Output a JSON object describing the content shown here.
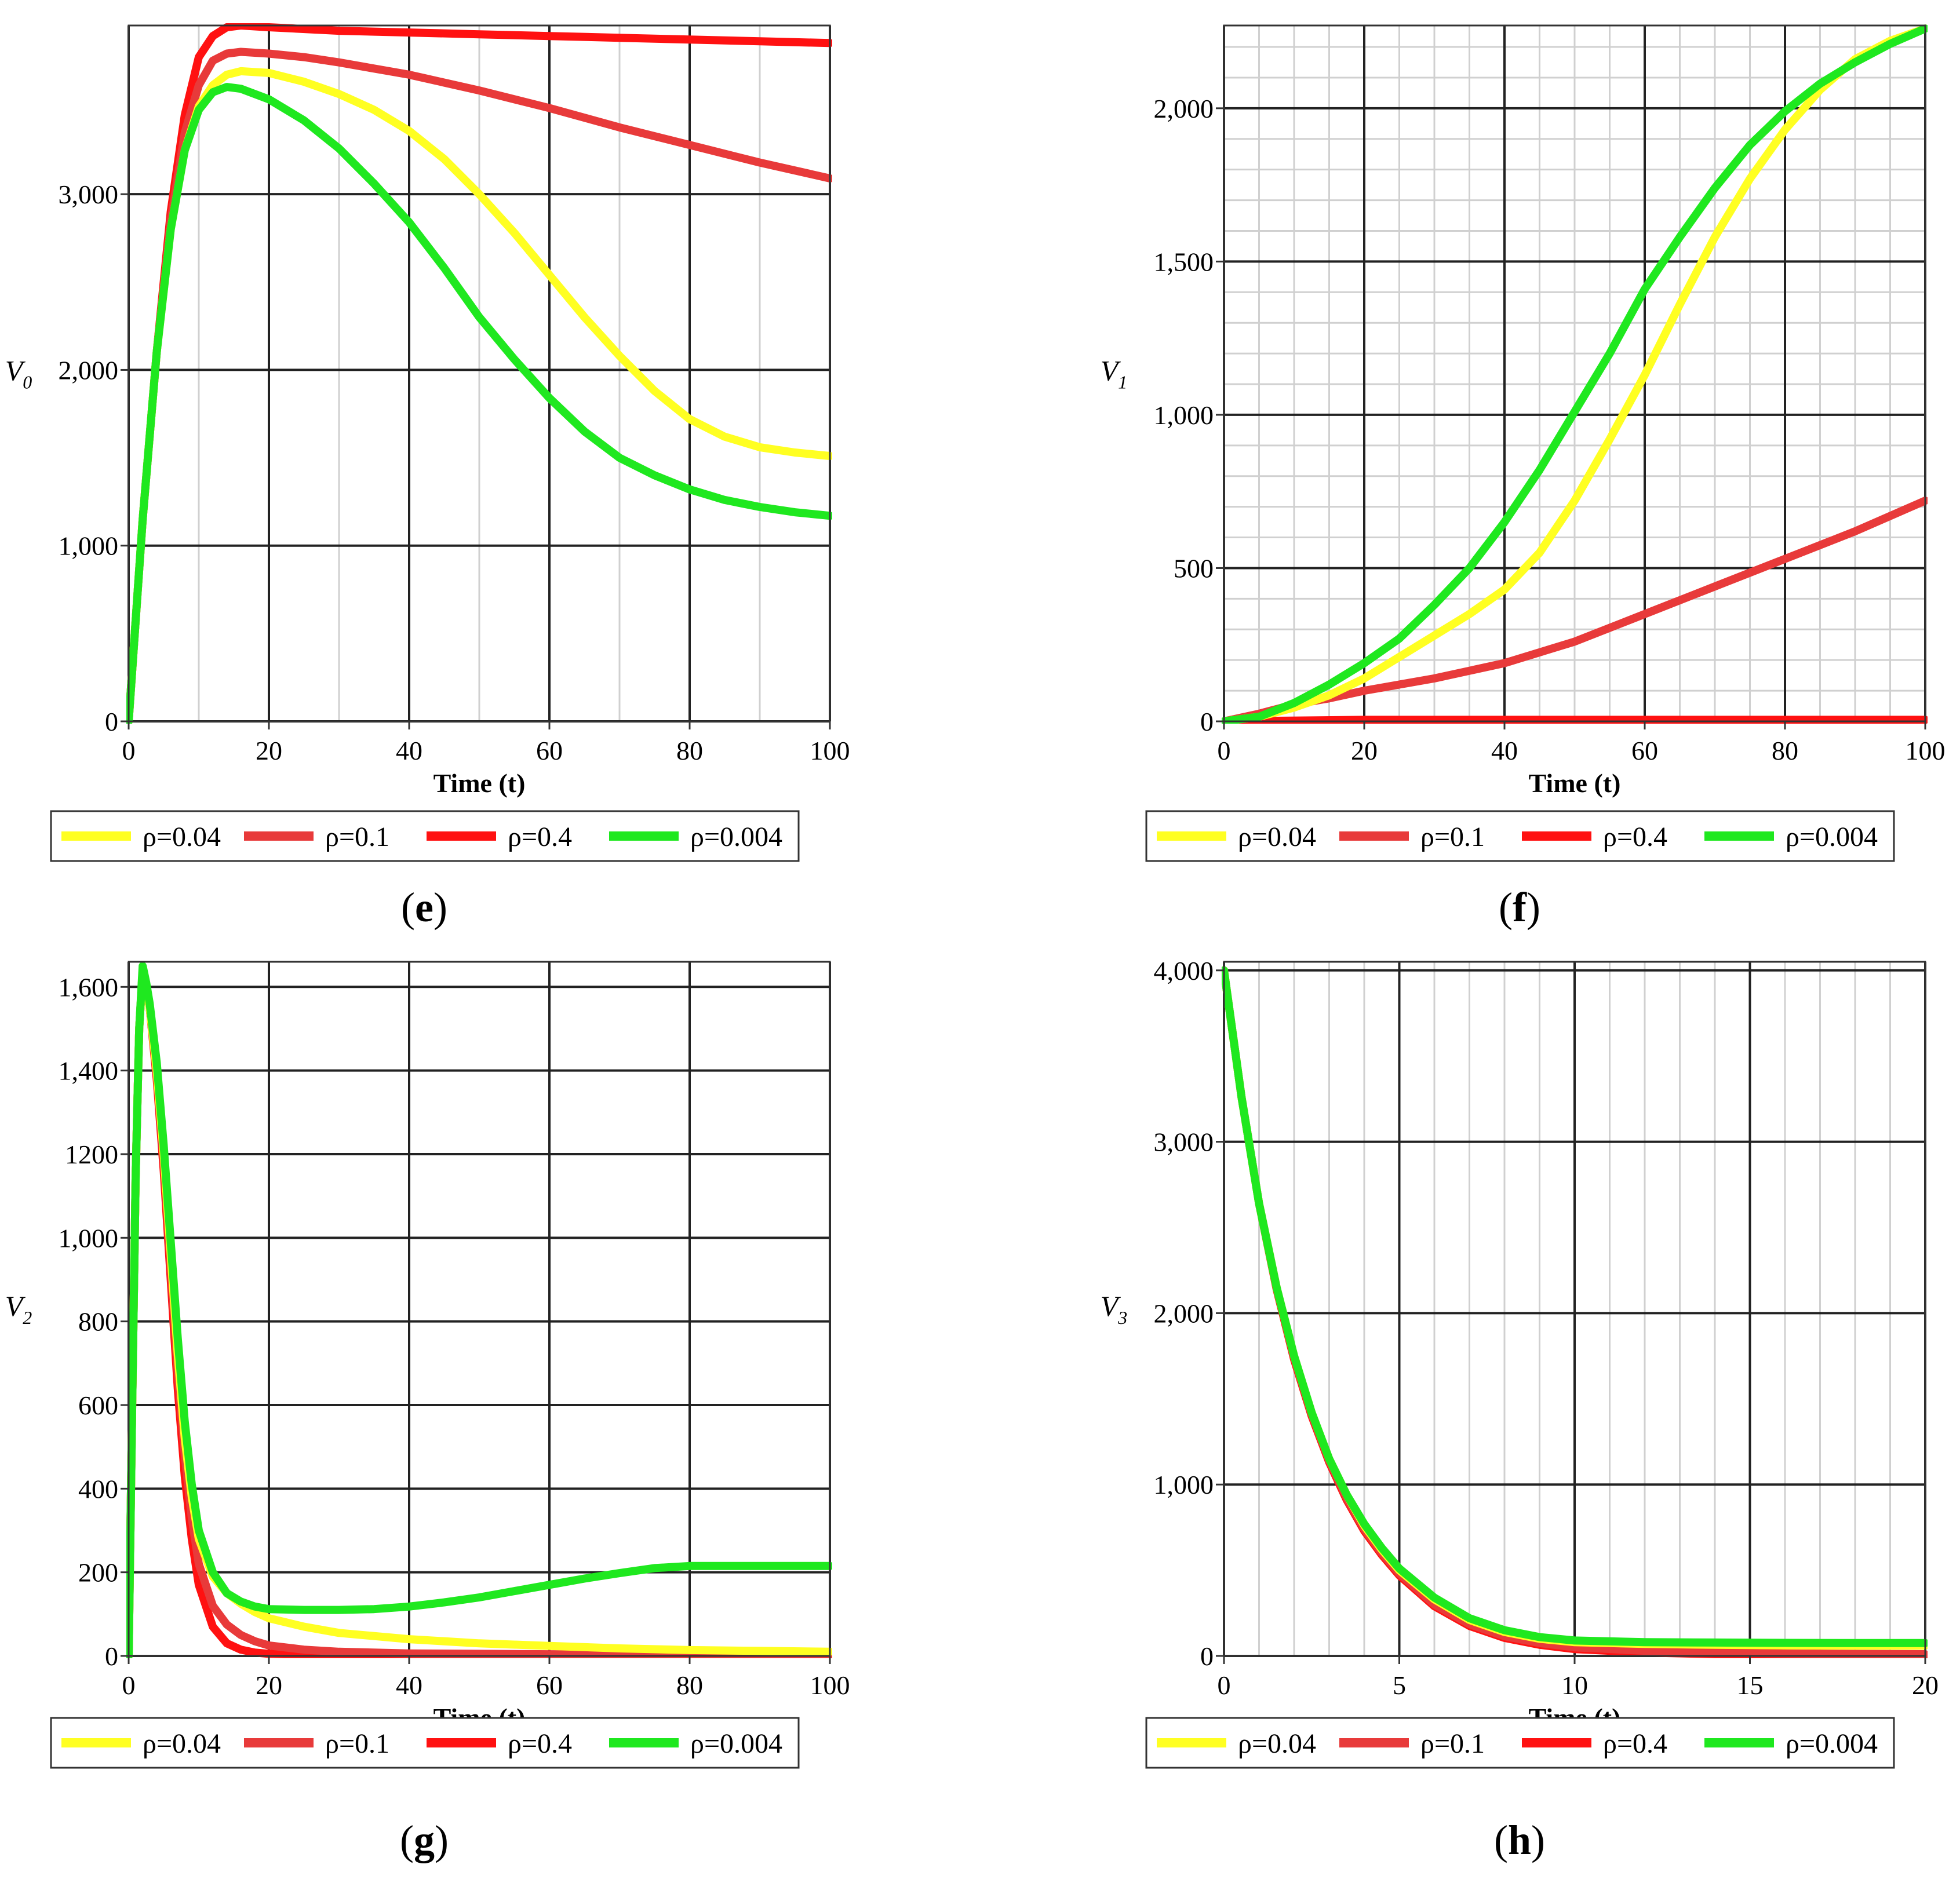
{
  "legend_series": [
    {
      "name": "ρ=0.04",
      "color": "#FFFF22"
    },
    {
      "name": "ρ=0.1",
      "color": "#E83A3A"
    },
    {
      "name": "ρ=0.4",
      "color": "#FF1111"
    },
    {
      "name": "ρ=0.004",
      "color": "#1FE81F"
    }
  ],
  "panels": {
    "e": {
      "open": "(",
      "letter": "e",
      "close": ")"
    },
    "f": {
      "open": "(",
      "letter": "f",
      "close": ")"
    },
    "g": {
      "open": "(",
      "letter": "g",
      "close": ")"
    },
    "h": {
      "open": "(",
      "letter": "h",
      "close": ")"
    }
  },
  "chart_data": [
    {
      "id": "e",
      "type": "line",
      "title": "",
      "xlabel": "Time (t)",
      "ylabel": "V",
      "ylabel_sub": "0",
      "xlim": [
        0,
        100
      ],
      "ylim": [
        0,
        3960
      ],
      "xticks": [
        0,
        20,
        40,
        60,
        80,
        100
      ],
      "xtick_labels": [
        "0",
        "20",
        "40",
        "60",
        "80",
        "100"
      ],
      "yticks": [
        0,
        1000,
        2000,
        3000
      ],
      "ytick_labels": [
        "0",
        "1,000",
        "2,000",
        "3,000"
      ],
      "major_vgrid": [
        0,
        20,
        40,
        60,
        80,
        100
      ],
      "minor_vgrid": [
        10,
        30,
        50,
        70,
        90
      ],
      "major_hgrid": [
        0,
        1000,
        2000,
        3000
      ],
      "minor_hgrid": [],
      "series": [
        {
          "name": "ρ=0.04",
          "x": [
            0,
            2,
            4,
            6,
            8,
            10,
            12,
            14,
            16,
            20,
            25,
            30,
            35,
            40,
            45,
            50,
            55,
            60,
            65,
            70,
            75,
            80,
            85,
            90,
            95,
            100
          ],
          "y": [
            0,
            1150,
            2100,
            2800,
            3250,
            3500,
            3620,
            3680,
            3700,
            3690,
            3640,
            3570,
            3480,
            3360,
            3200,
            3000,
            2780,
            2540,
            2300,
            2080,
            1880,
            1720,
            1620,
            1560,
            1530,
            1510
          ]
        },
        {
          "name": "ρ=0.1",
          "x": [
            0,
            2,
            4,
            6,
            8,
            10,
            12,
            14,
            16,
            20,
            25,
            30,
            40,
            50,
            60,
            70,
            80,
            90,
            100
          ],
          "y": [
            0,
            1150,
            2100,
            2850,
            3350,
            3620,
            3760,
            3800,
            3810,
            3800,
            3780,
            3750,
            3680,
            3590,
            3490,
            3380,
            3280,
            3180,
            3090
          ]
        },
        {
          "name": "ρ=0.4",
          "x": [
            0,
            2,
            4,
            6,
            8,
            10,
            12,
            14,
            16,
            20,
            30,
            40,
            50,
            60,
            70,
            80,
            90,
            100
          ],
          "y": [
            0,
            1150,
            2100,
            2900,
            3450,
            3780,
            3900,
            3950,
            3960,
            3950,
            3930,
            3920,
            3910,
            3900,
            3890,
            3880,
            3870,
            3860
          ]
        },
        {
          "name": "ρ=0.004",
          "x": [
            0,
            2,
            4,
            6,
            8,
            10,
            12,
            14,
            16,
            20,
            25,
            30,
            35,
            40,
            45,
            50,
            55,
            60,
            65,
            70,
            75,
            80,
            85,
            90,
            95,
            100
          ],
          "y": [
            0,
            1150,
            2100,
            2800,
            3250,
            3480,
            3580,
            3610,
            3600,
            3540,
            3420,
            3260,
            3060,
            2840,
            2580,
            2300,
            2060,
            1840,
            1650,
            1500,
            1400,
            1320,
            1260,
            1220,
            1190,
            1170
          ]
        }
      ]
    },
    {
      "id": "f",
      "type": "line",
      "title": "",
      "xlabel": "Time (t)",
      "ylabel": "V",
      "ylabel_sub": "1",
      "xlim": [
        0,
        100
      ],
      "ylim": [
        0,
        2270
      ],
      "xticks": [
        0,
        20,
        40,
        60,
        80,
        100
      ],
      "xtick_labels": [
        "0",
        "20",
        "40",
        "60",
        "80",
        "100"
      ],
      "yticks": [
        0,
        500,
        1000,
        1500,
        2000
      ],
      "ytick_labels": [
        "0",
        "500",
        "1,000",
        "1,500",
        "2,000"
      ],
      "major_vgrid": [
        0,
        20,
        40,
        60,
        80,
        100
      ],
      "minor_vgrid": [
        5,
        10,
        15,
        25,
        30,
        35,
        45,
        50,
        55,
        65,
        70,
        75,
        85,
        90,
        95
      ],
      "major_hgrid": [
        0,
        500,
        1000,
        1500,
        2000
      ],
      "minor_hgrid": [
        100,
        200,
        300,
        400,
        600,
        700,
        800,
        900,
        1100,
        1200,
        1300,
        1400,
        1600,
        1700,
        1800,
        1900,
        2100,
        2200
      ],
      "series": [
        {
          "name": "ρ=0.04",
          "x": [
            0,
            5,
            10,
            15,
            20,
            25,
            30,
            35,
            40,
            45,
            50,
            55,
            60,
            65,
            70,
            75,
            80,
            85,
            90,
            95,
            100
          ],
          "y": [
            0,
            15,
            45,
            85,
            140,
            210,
            280,
            350,
            430,
            550,
            720,
            920,
            1130,
            1360,
            1580,
            1770,
            1930,
            2060,
            2160,
            2220,
            2260
          ]
        },
        {
          "name": "ρ=0.1",
          "x": [
            0,
            5,
            10,
            15,
            20,
            30,
            40,
            50,
            60,
            70,
            80,
            90,
            100
          ],
          "y": [
            0,
            25,
            55,
            75,
            100,
            140,
            190,
            260,
            350,
            440,
            530,
            620,
            720
          ]
        },
        {
          "name": "ρ=0.4",
          "x": [
            0,
            20,
            40,
            60,
            80,
            100
          ],
          "y": [
            0,
            5,
            5,
            5,
            5,
            5
          ]
        },
        {
          "name": "ρ=0.004",
          "x": [
            0,
            5,
            10,
            15,
            20,
            25,
            30,
            35,
            40,
            45,
            50,
            55,
            60,
            65,
            70,
            75,
            80,
            85,
            90,
            95,
            100
          ],
          "y": [
            0,
            15,
            60,
            120,
            190,
            270,
            380,
            500,
            650,
            820,
            1010,
            1200,
            1410,
            1580,
            1740,
            1880,
            1990,
            2080,
            2150,
            2210,
            2260
          ]
        }
      ]
    },
    {
      "id": "g",
      "type": "line",
      "title": "",
      "xlabel": "Time (t)",
      "ylabel": "V",
      "ylabel_sub": "2",
      "xlim": [
        0,
        100
      ],
      "ylim": [
        0,
        1660
      ],
      "xticks": [
        0,
        20,
        40,
        60,
        80,
        100
      ],
      "xtick_labels": [
        "0",
        "20",
        "40",
        "60",
        "80",
        "100"
      ],
      "yticks": [
        0,
        200,
        400,
        600,
        800,
        1000,
        1200,
        1400,
        1600
      ],
      "ytick_labels": [
        "0",
        "200",
        "400",
        "600",
        "800",
        "1,000",
        "1200",
        "1,400",
        "1,600"
      ],
      "major_vgrid": [
        0,
        20,
        40,
        60,
        80,
        100
      ],
      "minor_vgrid": [],
      "major_hgrid": [
        0,
        200,
        400,
        600,
        800,
        1000,
        1200,
        1400,
        1600
      ],
      "minor_hgrid": [],
      "series": [
        {
          "name": "ρ=0.04",
          "x": [
            0,
            0.5,
            1,
            1.5,
            2,
            2.5,
            3,
            4,
            5,
            6,
            7,
            8,
            9,
            10,
            12,
            14,
            16,
            18,
            20,
            25,
            30,
            40,
            50,
            60,
            70,
            80,
            90,
            100
          ],
          "y": [
            0,
            600,
            1150,
            1500,
            1640,
            1600,
            1550,
            1400,
            1200,
            960,
            720,
            520,
            380,
            280,
            190,
            150,
            125,
            105,
            90,
            70,
            55,
            40,
            30,
            24,
            18,
            14,
            12,
            10
          ]
        },
        {
          "name": "ρ=0.1",
          "x": [
            0,
            0.5,
            1,
            1.5,
            2,
            2.5,
            3,
            4,
            5,
            6,
            7,
            8,
            9,
            10,
            12,
            14,
            16,
            18,
            20,
            25,
            30,
            40,
            50,
            60,
            70,
            80,
            90,
            100
          ],
          "y": [
            0,
            600,
            1150,
            1500,
            1640,
            1600,
            1550,
            1390,
            1180,
            930,
            680,
            480,
            330,
            220,
            120,
            75,
            50,
            35,
            25,
            15,
            10,
            6,
            5,
            4,
            4,
            3,
            3,
            3
          ]
        },
        {
          "name": "ρ=0.4",
          "x": [
            0,
            0.5,
            1,
            1.5,
            2,
            2.5,
            3,
            4,
            5,
            6,
            7,
            8,
            9,
            10,
            12,
            14,
            16,
            18,
            20,
            25,
            30,
            40,
            60,
            80,
            100
          ],
          "y": [
            0,
            600,
            1150,
            1500,
            1640,
            1600,
            1550,
            1380,
            1160,
            900,
            640,
            430,
            280,
            170,
            70,
            30,
            15,
            8,
            5,
            3,
            2,
            1,
            1,
            1,
            1
          ]
        },
        {
          "name": "ρ=0.004",
          "x": [
            0,
            0.5,
            1,
            1.5,
            2,
            2.5,
            3,
            4,
            5,
            6,
            7,
            8,
            9,
            10,
            12,
            14,
            16,
            18,
            20,
            25,
            30,
            35,
            40,
            45,
            50,
            55,
            60,
            65,
            70,
            75,
            80,
            85,
            90,
            95,
            100
          ],
          "y": [
            0,
            600,
            1150,
            1500,
            1650,
            1610,
            1560,
            1420,
            1220,
            990,
            760,
            560,
            410,
            300,
            200,
            150,
            130,
            118,
            112,
            110,
            110,
            112,
            118,
            128,
            140,
            155,
            170,
            185,
            198,
            210,
            215,
            215,
            215,
            215,
            215
          ]
        }
      ]
    },
    {
      "id": "h",
      "type": "line",
      "title": "",
      "xlabel": "Time (t)",
      "ylabel": "V",
      "ylabel_sub": "3",
      "xlim": [
        0,
        20
      ],
      "ylim": [
        0,
        4050
      ],
      "xticks": [
        0,
        5,
        10,
        15,
        20
      ],
      "xtick_labels": [
        "0",
        "5",
        "10",
        "15",
        "20"
      ],
      "yticks": [
        0,
        1000,
        2000,
        3000,
        4000
      ],
      "ytick_labels": [
        "0",
        "1,000",
        "2,000",
        "3,000",
        "4,000"
      ],
      "major_vgrid": [
        0,
        5,
        10,
        15,
        20
      ],
      "minor_vgrid": [
        1,
        2,
        3,
        4,
        6,
        7,
        8,
        9,
        11,
        12,
        13,
        14,
        16,
        17,
        18,
        19
      ],
      "major_hgrid": [
        0,
        1000,
        2000,
        3000,
        4000
      ],
      "minor_hgrid": [],
      "series": [
        {
          "name": "ρ=0.04",
          "x": [
            0,
            0.5,
            1,
            1.5,
            2,
            2.5,
            3,
            3.5,
            4,
            4.5,
            5,
            6,
            7,
            8,
            9,
            10,
            12,
            14,
            16,
            18,
            20
          ],
          "y": [
            4000,
            3260,
            2640,
            2150,
            1750,
            1420,
            1150,
            940,
            760,
            620,
            500,
            330,
            210,
            140,
            100,
            80,
            70,
            65,
            62,
            60,
            60
          ]
        },
        {
          "name": "ρ=0.1",
          "x": [
            0,
            0.5,
            1,
            1.5,
            2,
            2.5,
            3,
            3.5,
            4,
            4.5,
            5,
            6,
            7,
            8,
            9,
            10,
            12,
            14,
            16,
            18,
            20
          ],
          "y": [
            4000,
            3260,
            2640,
            2150,
            1740,
            1410,
            1140,
            920,
            740,
            600,
            480,
            300,
            185,
            115,
            75,
            50,
            30,
            20,
            15,
            12,
            10
          ]
        },
        {
          "name": "ρ=0.4",
          "x": [
            0,
            0.5,
            1,
            1.5,
            2,
            2.5,
            3,
            3.5,
            4,
            4.5,
            5,
            6,
            7,
            8,
            9,
            10,
            12,
            14,
            16,
            18,
            20
          ],
          "y": [
            4000,
            3260,
            2640,
            2140,
            1730,
            1400,
            1130,
            910,
            730,
            590,
            470,
            290,
            175,
            105,
            65,
            40,
            20,
            10,
            5,
            3,
            2
          ]
        },
        {
          "name": "ρ=0.004",
          "x": [
            0,
            0.5,
            1,
            1.5,
            2,
            2.5,
            3,
            3.5,
            4,
            4.5,
            5,
            6,
            7,
            8,
            9,
            10,
            12,
            14,
            16,
            18,
            20
          ],
          "y": [
            4000,
            3260,
            2640,
            2150,
            1750,
            1420,
            1150,
            940,
            770,
            630,
            510,
            340,
            220,
            150,
            110,
            90,
            80,
            78,
            76,
            75,
            75
          ]
        }
      ]
    }
  ]
}
